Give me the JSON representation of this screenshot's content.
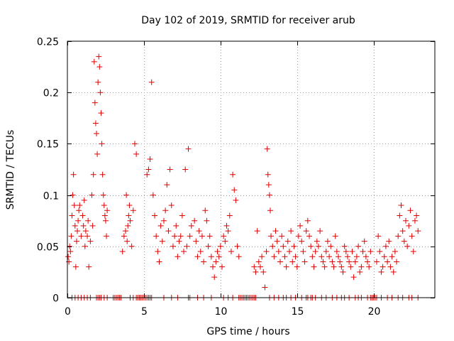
{
  "chart_data": {
    "type": "scatter",
    "title": "Day 102 of 2019, SRMTID for receiver arub",
    "xlabel": "GPS time / hours",
    "ylabel": "SRMTID / TECUs",
    "xlim": [
      0,
      24
    ],
    "ylim": [
      0,
      0.25
    ],
    "xticks": [
      "0",
      "5",
      "10",
      "15",
      "20"
    ],
    "xtick_values": [
      0,
      5,
      10,
      15,
      20
    ],
    "yticks": [
      "0",
      "0.05",
      "0.1",
      "0.15",
      "0.2",
      "0.25"
    ],
    "ytick_values": [
      0,
      0.05,
      0.1,
      0.15,
      0.2,
      0.25
    ],
    "grid": true,
    "marker": "plus",
    "color": "#e00000",
    "series": [
      {
        "name": "SRMTID",
        "points": [
          [
            0.05,
            0.04
          ],
          [
            0.1,
            0.035
          ],
          [
            0.15,
            0.05
          ],
          [
            0.2,
            0.045
          ],
          [
            0.25,
            0.06
          ],
          [
            0.3,
            0.08
          ],
          [
            0.35,
            0.1
          ],
          [
            0.4,
            0.12
          ],
          [
            0.45,
            0.09
          ],
          [
            0.5,
            0.07
          ],
          [
            0.55,
            0.03
          ],
          [
            0.6,
            0.055
          ],
          [
            0.65,
            0.065
          ],
          [
            0.7,
            0.075
          ],
          [
            0.75,
            0.085
          ],
          [
            0.8,
            0.09
          ],
          [
            0.9,
            0.06
          ],
          [
            1.0,
            0.08
          ],
          [
            1.05,
            0.07
          ],
          [
            1.1,
            0.095
          ],
          [
            1.15,
            0.05
          ],
          [
            1.2,
            0.065
          ],
          [
            1.3,
            0.06
          ],
          [
            1.35,
            0.075
          ],
          [
            1.4,
            0.03
          ],
          [
            1.5,
            0.055
          ],
          [
            1.6,
            0.1
          ],
          [
            1.65,
            0.07
          ],
          [
            1.7,
            0.12
          ],
          [
            1.75,
            0.23
          ],
          [
            1.8,
            0.19
          ],
          [
            1.85,
            0.17
          ],
          [
            1.9,
            0.16
          ],
          [
            1.95,
            0.14
          ],
          [
            2.0,
            0.21
          ],
          [
            2.05,
            0.235
          ],
          [
            2.1,
            0.225
          ],
          [
            2.15,
            0.2
          ],
          [
            2.2,
            0.18
          ],
          [
            2.25,
            0.15
          ],
          [
            2.3,
            0.12
          ],
          [
            2.35,
            0.1
          ],
          [
            2.4,
            0.09
          ],
          [
            2.45,
            0.08
          ],
          [
            2.5,
            0.075
          ],
          [
            2.55,
            0.06
          ],
          [
            2.6,
            0.085
          ],
          [
            3.6,
            0.045
          ],
          [
            3.7,
            0.06
          ],
          [
            3.8,
            0.065
          ],
          [
            3.85,
            0.1
          ],
          [
            3.9,
            0.055
          ],
          [
            3.95,
            0.07
          ],
          [
            4.0,
            0.08
          ],
          [
            4.05,
            0.09
          ],
          [
            4.1,
            0.075
          ],
          [
            4.2,
            0.05
          ],
          [
            4.3,
            0.085
          ],
          [
            4.4,
            0.15
          ],
          [
            4.5,
            0.14
          ],
          [
            5.2,
            0.12
          ],
          [
            5.3,
            0.125
          ],
          [
            5.4,
            0.135
          ],
          [
            5.5,
            0.21
          ],
          [
            5.6,
            0.1
          ],
          [
            5.7,
            0.08
          ],
          [
            5.8,
            0.06
          ],
          [
            5.9,
            0.045
          ],
          [
            6.0,
            0.035
          ],
          [
            6.1,
            0.07
          ],
          [
            6.2,
            0.055
          ],
          [
            6.3,
            0.075
          ],
          [
            6.4,
            0.085
          ],
          [
            6.5,
            0.11
          ],
          [
            6.6,
            0.065
          ],
          [
            6.7,
            0.125
          ],
          [
            6.8,
            0.09
          ],
          [
            6.9,
            0.05
          ],
          [
            7.0,
            0.06
          ],
          [
            7.1,
            0.07
          ],
          [
            7.2,
            0.04
          ],
          [
            7.3,
            0.055
          ],
          [
            7.4,
            0.06
          ],
          [
            7.5,
            0.08
          ],
          [
            7.6,
            0.045
          ],
          [
            7.7,
            0.125
          ],
          [
            7.8,
            0.05
          ],
          [
            7.9,
            0.145
          ],
          [
            8.0,
            0.06
          ],
          [
            8.1,
            0.07
          ],
          [
            8.3,
            0.075
          ],
          [
            8.4,
            0.055
          ],
          [
            8.5,
            0.04
          ],
          [
            8.6,
            0.065
          ],
          [
            8.7,
            0.045
          ],
          [
            8.8,
            0.06
          ],
          [
            8.9,
            0.035
          ],
          [
            9.0,
            0.085
          ],
          [
            9.1,
            0.075
          ],
          [
            9.2,
            0.05
          ],
          [
            9.3,
            0.06
          ],
          [
            9.4,
            0.04
          ],
          [
            9.5,
            0.03
          ],
          [
            9.6,
            0.02
          ],
          [
            9.7,
            0.035
          ],
          [
            9.8,
            0.045
          ],
          [
            9.9,
            0.04
          ],
          [
            10.0,
            0.05
          ],
          [
            10.1,
            0.03
          ],
          [
            10.2,
            0.06
          ],
          [
            10.3,
            0.055
          ],
          [
            10.4,
            0.07
          ],
          [
            10.5,
            0.065
          ],
          [
            10.6,
            0.08
          ],
          [
            10.7,
            0.045
          ],
          [
            10.8,
            0.12
          ],
          [
            10.9,
            0.105
          ],
          [
            11.0,
            0.095
          ],
          [
            11.1,
            0.05
          ],
          [
            11.2,
            0.04
          ],
          [
            12.2,
            0.03
          ],
          [
            12.3,
            0.025
          ],
          [
            12.4,
            0.065
          ],
          [
            12.5,
            0.035
          ],
          [
            12.6,
            0.03
          ],
          [
            12.7,
            0.04
          ],
          [
            12.8,
            0.025
          ],
          [
            12.9,
            0.01
          ],
          [
            13.0,
            0.045
          ],
          [
            13.05,
            0.145
          ],
          [
            13.1,
            0.12
          ],
          [
            13.15,
            0.11
          ],
          [
            13.2,
            0.1
          ],
          [
            13.25,
            0.085
          ],
          [
            13.3,
            0.06
          ],
          [
            13.4,
            0.05
          ],
          [
            13.5,
            0.04
          ],
          [
            13.6,
            0.065
          ],
          [
            13.7,
            0.055
          ],
          [
            13.8,
            0.045
          ],
          [
            13.9,
            0.035
          ],
          [
            14.0,
            0.06
          ],
          [
            14.1,
            0.05
          ],
          [
            14.2,
            0.04
          ],
          [
            14.3,
            0.03
          ],
          [
            14.4,
            0.055
          ],
          [
            14.5,
            0.045
          ],
          [
            14.6,
            0.065
          ],
          [
            14.7,
            0.035
          ],
          [
            14.8,
            0.05
          ],
          [
            14.9,
            0.04
          ],
          [
            15.0,
            0.03
          ],
          [
            15.1,
            0.06
          ],
          [
            15.2,
            0.07
          ],
          [
            15.3,
            0.055
          ],
          [
            15.4,
            0.045
          ],
          [
            15.5,
            0.035
          ],
          [
            15.6,
            0.065
          ],
          [
            15.7,
            0.075
          ],
          [
            15.8,
            0.06
          ],
          [
            15.9,
            0.05
          ],
          [
            16.0,
            0.04
          ],
          [
            16.1,
            0.03
          ],
          [
            16.2,
            0.045
          ],
          [
            16.3,
            0.055
          ],
          [
            16.4,
            0.05
          ],
          [
            16.5,
            0.065
          ],
          [
            16.6,
            0.04
          ],
          [
            16.7,
            0.035
          ],
          [
            16.8,
            0.03
          ],
          [
            16.9,
            0.045
          ],
          [
            17.0,
            0.055
          ],
          [
            17.1,
            0.04
          ],
          [
            17.2,
            0.05
          ],
          [
            17.3,
            0.035
          ],
          [
            17.4,
            0.03
          ],
          [
            17.5,
            0.06
          ],
          [
            17.6,
            0.045
          ],
          [
            17.7,
            0.04
          ],
          [
            17.8,
            0.035
          ],
          [
            17.9,
            0.03
          ],
          [
            18.0,
            0.025
          ],
          [
            18.1,
            0.05
          ],
          [
            18.2,
            0.045
          ],
          [
            18.3,
            0.04
          ],
          [
            18.4,
            0.035
          ],
          [
            18.5,
            0.03
          ],
          [
            18.6,
            0.045
          ],
          [
            18.7,
            0.02
          ],
          [
            18.8,
            0.035
          ],
          [
            18.9,
            0.04
          ],
          [
            19.0,
            0.05
          ],
          [
            19.1,
            0.025
          ],
          [
            19.2,
            0.03
          ],
          [
            19.3,
            0.045
          ],
          [
            19.4,
            0.055
          ],
          [
            19.5,
            0.04
          ],
          [
            19.6,
            0.035
          ],
          [
            19.7,
            0.03
          ],
          [
            19.8,
            0.045
          ],
          [
            20.2,
            0.035
          ],
          [
            20.3,
            0.06
          ],
          [
            20.4,
            0.045
          ],
          [
            20.5,
            0.025
          ],
          [
            20.6,
            0.03
          ],
          [
            20.7,
            0.04
          ],
          [
            20.8,
            0.05
          ],
          [
            20.9,
            0.035
          ],
          [
            21.0,
            0.055
          ],
          [
            21.1,
            0.03
          ],
          [
            21.2,
            0.04
          ],
          [
            21.3,
            0.025
          ],
          [
            21.4,
            0.045
          ],
          [
            21.5,
            0.035
          ],
          [
            21.6,
            0.06
          ],
          [
            21.7,
            0.08
          ],
          [
            21.8,
            0.09
          ],
          [
            21.9,
            0.065
          ],
          [
            22.0,
            0.055
          ],
          [
            22.1,
            0.075
          ],
          [
            22.2,
            0.05
          ],
          [
            22.3,
            0.07
          ],
          [
            22.4,
            0.085
          ],
          [
            22.5,
            0.06
          ],
          [
            22.6,
            0.045
          ],
          [
            22.7,
            0.075
          ],
          [
            22.8,
            0.08
          ],
          [
            22.9,
            0.065
          ]
        ],
        "zero_points": [
          0.3,
          0.5,
          0.7,
          0.9,
          1.1,
          1.3,
          1.5,
          1.9,
          2.0,
          2.1,
          2.2,
          2.4,
          2.6,
          3.0,
          3.1,
          3.2,
          3.3,
          3.4,
          3.5,
          4.1,
          4.3,
          4.5,
          4.6,
          4.7,
          4.8,
          4.9,
          5.0,
          5.1,
          5.2,
          5.3,
          5.4,
          5.5,
          6.3,
          6.8,
          7.2,
          7.9,
          8.0,
          8.5,
          8.9,
          9.4,
          10.2,
          10.5,
          10.8,
          11.2,
          11.3,
          11.4,
          11.5,
          11.6,
          11.7,
          11.8,
          11.9,
          12.0,
          12.1,
          12.2,
          12.3,
          13.2,
          13.5,
          13.8,
          14.1,
          14.3,
          14.6,
          14.9,
          15.3,
          15.6,
          15.7,
          15.9,
          16.0,
          16.2,
          16.6,
          16.9,
          17.3,
          17.6,
          17.9,
          18.1,
          18.4,
          18.8,
          19.0,
          19.2,
          19.6,
          19.8,
          19.9,
          20.0,
          20.1,
          20.2,
          20.5,
          20.9,
          21.2,
          21.6,
          21.9,
          22.3,
          22.5,
          22.9
        ]
      }
    ]
  }
}
